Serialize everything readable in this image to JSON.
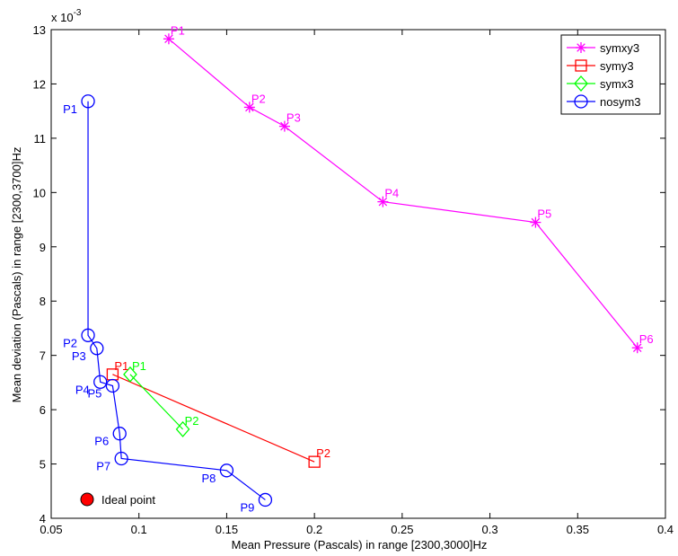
{
  "chart_data": {
    "type": "line",
    "xlabel": "Mean Pressure (Pascals) in range [2300,3000]Hz",
    "ylabel": "Mean deviation (Pascals) in range [2300,3700]Hz",
    "y_multiplier_label": "x 10",
    "y_multiplier_exponent": "-3",
    "xlim": [
      0.05,
      0.4
    ],
    "ylim": [
      4,
      13
    ],
    "x_ticks": [
      0.05,
      0.1,
      0.15,
      0.2,
      0.25,
      0.3,
      0.35,
      0.4
    ],
    "x_tick_labels": [
      "0.05",
      "0.1",
      "0.15",
      "0.2",
      "0.25",
      "0.3",
      "0.35",
      "0.4"
    ],
    "y_ticks": [
      4,
      5,
      6,
      7,
      8,
      9,
      10,
      11,
      12,
      13
    ],
    "y_tick_labels": [
      "4",
      "5",
      "6",
      "7",
      "8",
      "9",
      "10",
      "11",
      "12",
      "13"
    ],
    "grid": false,
    "legend_position": "top-right",
    "series": [
      {
        "name": "symxy3",
        "color": "#ff00ff",
        "marker": "asterisk",
        "label_side": "right",
        "points": [
          {
            "x": 0.117,
            "y": 12.83,
            "label": "P1"
          },
          {
            "x": 0.163,
            "y": 11.57,
            "label": "P2"
          },
          {
            "x": 0.183,
            "y": 11.22,
            "label": "P3"
          },
          {
            "x": 0.239,
            "y": 9.83,
            "label": "P4"
          },
          {
            "x": 0.326,
            "y": 9.45,
            "label": "P5"
          },
          {
            "x": 0.384,
            "y": 7.14,
            "label": "P6"
          }
        ]
      },
      {
        "name": "symy3",
        "color": "#ff0000",
        "marker": "square",
        "label_side": "right",
        "points": [
          {
            "x": 0.085,
            "y": 6.65,
            "label": "P1"
          },
          {
            "x": 0.2,
            "y": 5.04,
            "label": "P2"
          }
        ]
      },
      {
        "name": "symx3",
        "color": "#00ff00",
        "marker": "diamond",
        "label_side": "right",
        "points": [
          {
            "x": 0.095,
            "y": 6.65,
            "label": "P1"
          },
          {
            "x": 0.125,
            "y": 5.64,
            "label": "P2"
          }
        ]
      },
      {
        "name": "nosym3",
        "color": "#0000ff",
        "marker": "circle",
        "label_side": "left",
        "points": [
          {
            "x": 0.071,
            "y": 11.68,
            "label": "P1"
          },
          {
            "x": 0.071,
            "y": 7.37,
            "label": "P2"
          },
          {
            "x": 0.076,
            "y": 7.13,
            "label": "P3"
          },
          {
            "x": 0.078,
            "y": 6.51,
            "label": "P4"
          },
          {
            "x": 0.085,
            "y": 6.44,
            "label": "P5"
          },
          {
            "x": 0.089,
            "y": 5.56,
            "label": "P6"
          },
          {
            "x": 0.09,
            "y": 5.1,
            "label": "P7"
          },
          {
            "x": 0.15,
            "y": 4.88,
            "label": "P8"
          },
          {
            "x": 0.172,
            "y": 4.34,
            "label": "P9"
          }
        ]
      }
    ],
    "annotation": {
      "label": "Ideal point",
      "marker_color": "#ff0000",
      "marker": "filled-circle"
    }
  }
}
